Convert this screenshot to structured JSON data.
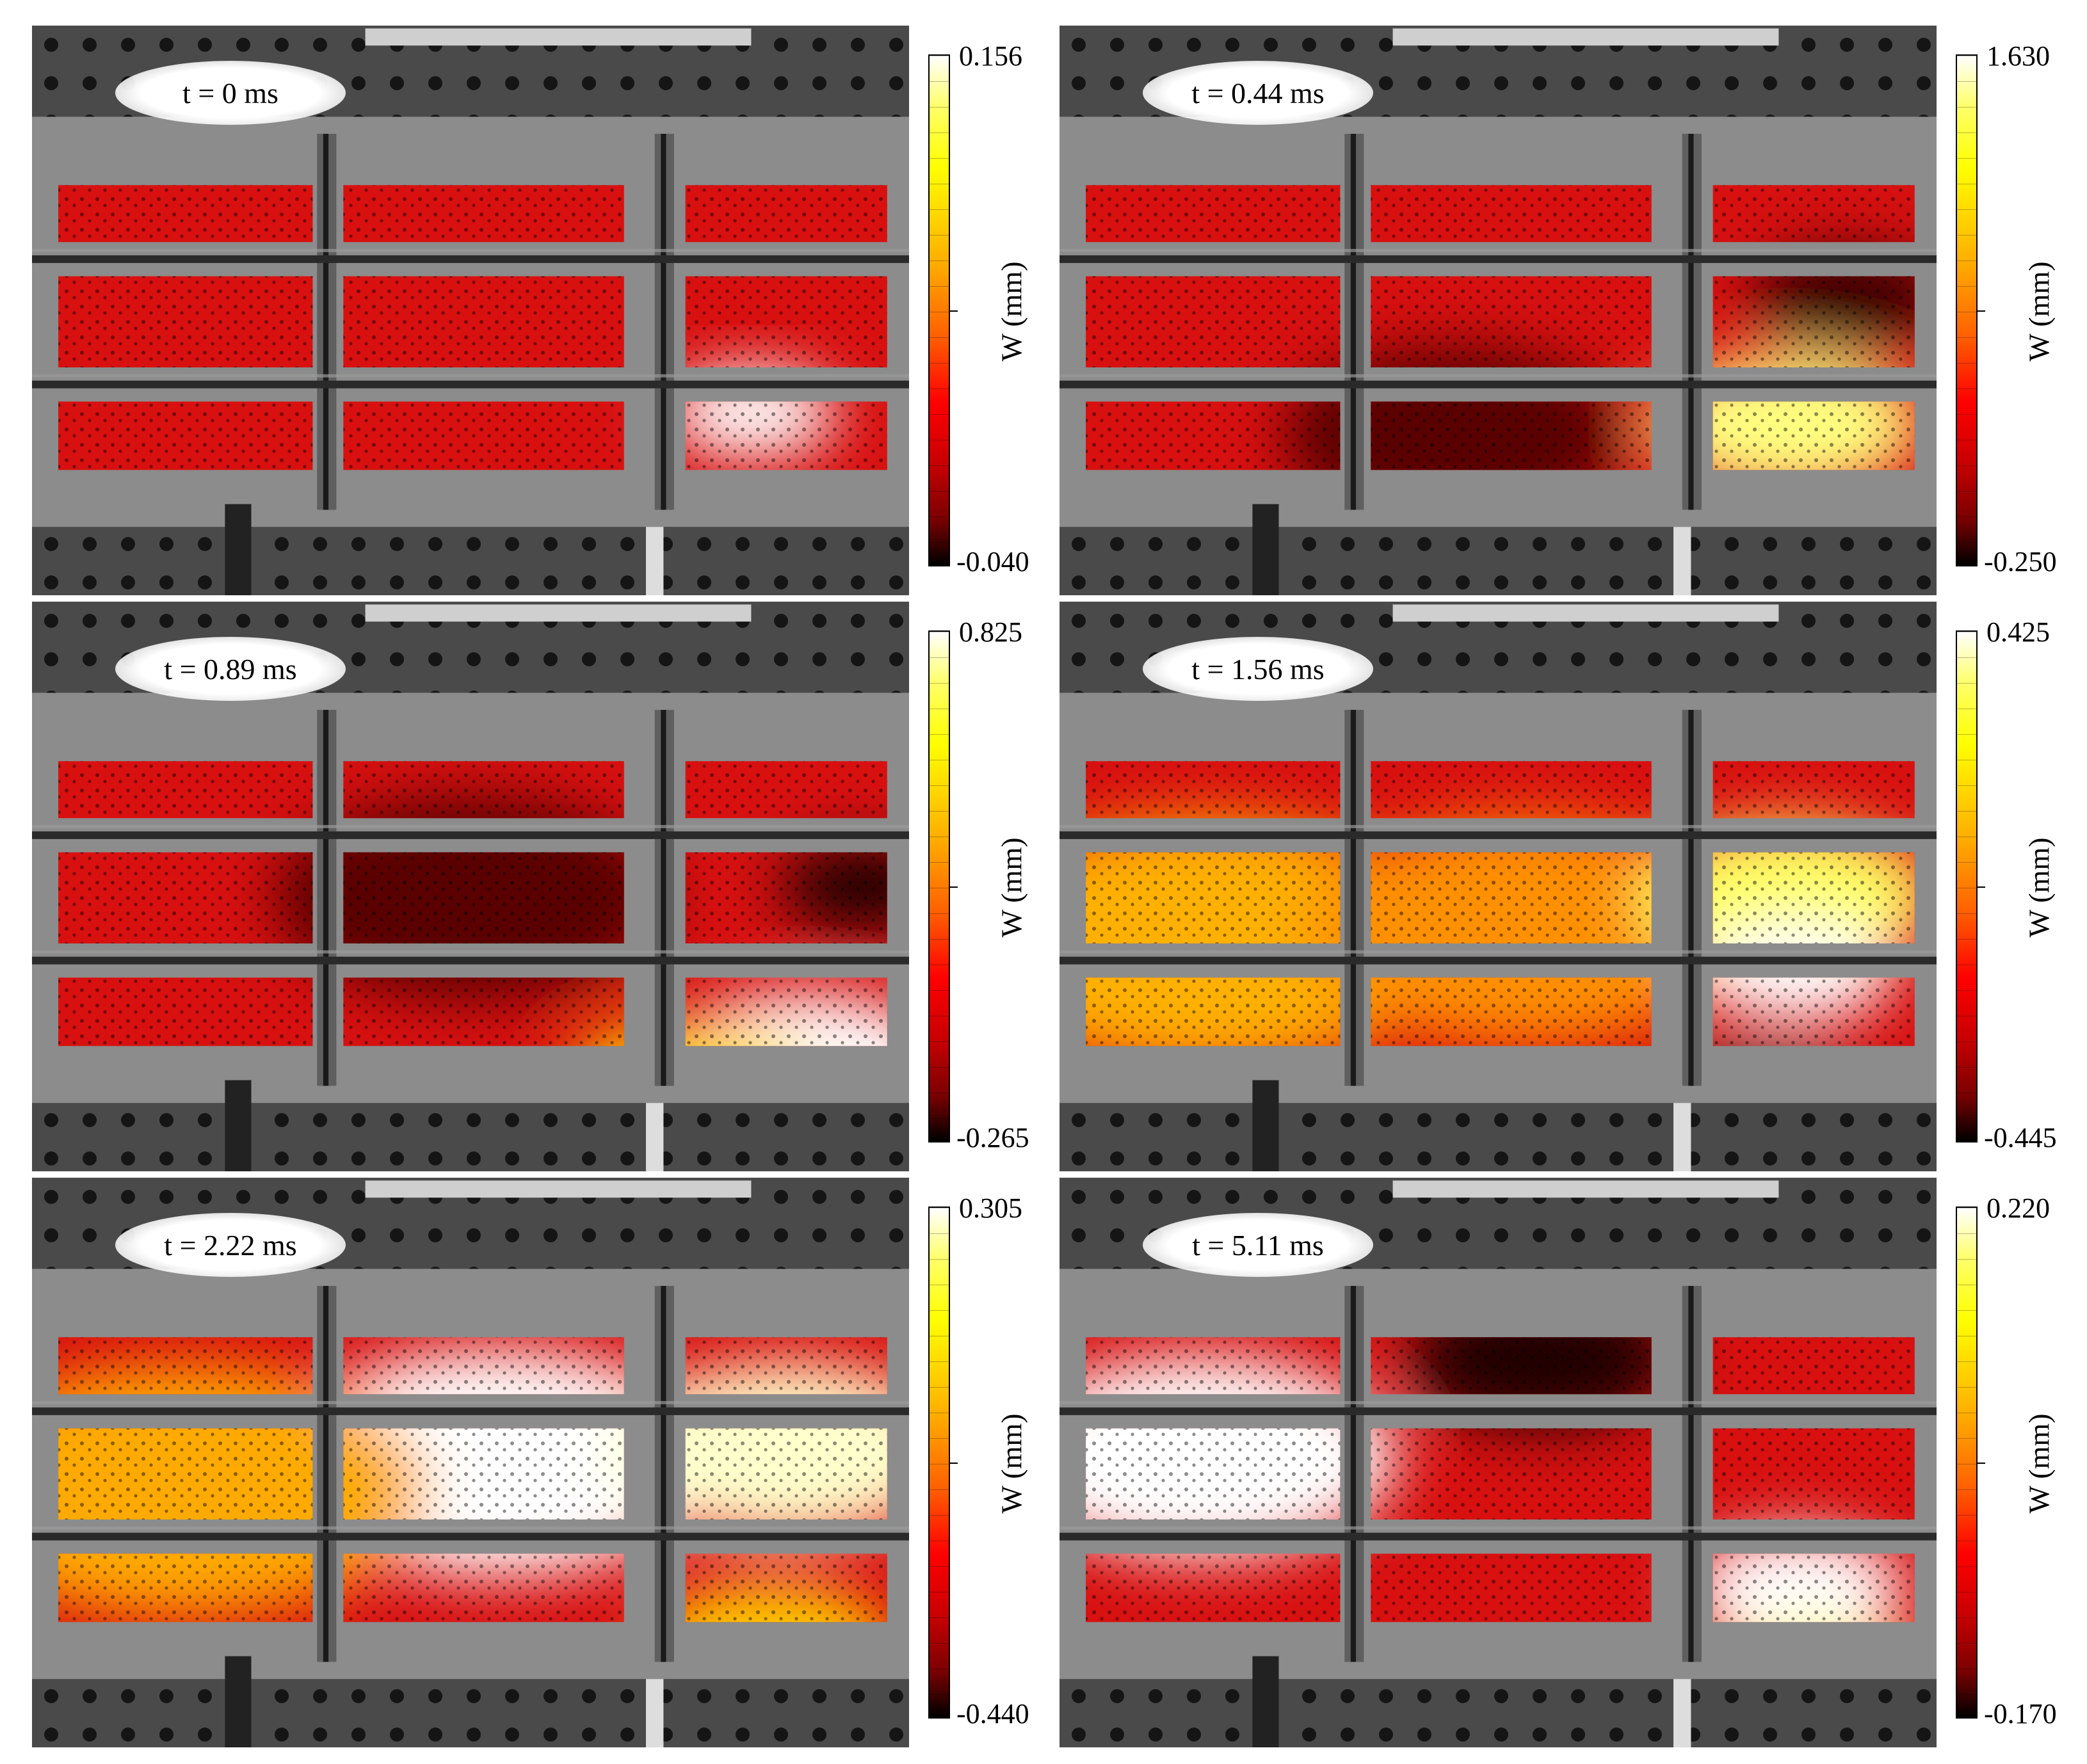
{
  "panels": [
    {
      "time": "t = 0 ms",
      "cmax": "0.156",
      "cmin": "-0.040",
      "axis": "W (mm)"
    },
    {
      "time": "t = 0.44 ms",
      "cmax": "1.630",
      "cmin": "-0.250",
      "axis": "W (mm)"
    },
    {
      "time": "t = 0.89 ms",
      "cmax": "0.825",
      "cmin": "-0.265",
      "axis": "W (mm)"
    },
    {
      "time": "t = 1.56 ms",
      "cmax": "0.425",
      "cmin": "-0.445",
      "axis": "W (mm)"
    },
    {
      "time": "t = 2.22 ms",
      "cmax": "0.305",
      "cmin": "-0.440",
      "axis": "W (mm)"
    },
    {
      "time": "t = 5.11 ms",
      "cmax": "0.220",
      "cmin": "-0.170",
      "axis": "W (mm)"
    }
  ],
  "colors": {
    "low": "#000000",
    "mid": "#ff0000",
    "high": "#ffff00",
    "peak": "#ffffff"
  }
}
